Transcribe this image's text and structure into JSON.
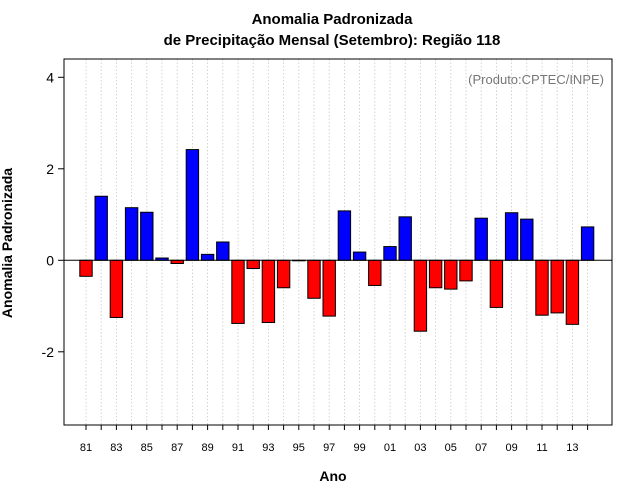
{
  "chart_data": {
    "type": "bar",
    "title": "Anomalia Padronizada",
    "subtitle": "de Precipitação Mensal (Setembro): Região 118",
    "xlabel": "Ano",
    "ylabel": "Anomalia Padronizada",
    "annotation": "(Produto:CPTEC/INPE)",
    "ylim": [
      -3.6,
      4.4
    ],
    "yticks": [
      -2,
      0,
      2,
      4
    ],
    "grid": "vertical-dotted",
    "positive_color": "#0000ff",
    "negative_color": "#ff0000",
    "categories": [
      "1981",
      "1982",
      "1983",
      "1984",
      "1985",
      "1986",
      "1987",
      "1988",
      "1989",
      "1990",
      "1991",
      "1992",
      "1993",
      "1994",
      "1995",
      "1996",
      "1997",
      "1998",
      "1999",
      "2000",
      "2001",
      "2002",
      "2003",
      "2004",
      "2005",
      "2006",
      "2007",
      "2008",
      "2009",
      "2010",
      "2011",
      "2012",
      "2013",
      "2014"
    ],
    "tick_labels": [
      "81",
      "",
      "83",
      "",
      "85",
      "",
      "87",
      "",
      "89",
      "",
      "91",
      "",
      "93",
      "",
      "95",
      "",
      "97",
      "",
      "99",
      "",
      "01",
      "",
      "03",
      "",
      "05",
      "",
      "07",
      "",
      "09",
      "",
      "11",
      "",
      "13",
      ""
    ],
    "values": [
      -0.35,
      1.4,
      -1.25,
      1.15,
      1.05,
      0.05,
      -0.07,
      2.42,
      0.13,
      0.4,
      -1.38,
      -0.18,
      -1.36,
      -0.6,
      0.0,
      -0.83,
      -1.22,
      1.08,
      0.18,
      -0.55,
      0.3,
      0.95,
      -1.55,
      -0.6,
      -0.63,
      -0.45,
      0.92,
      -1.03,
      1.04,
      0.9,
      -1.2,
      -1.15,
      -1.4,
      0.73
    ]
  }
}
